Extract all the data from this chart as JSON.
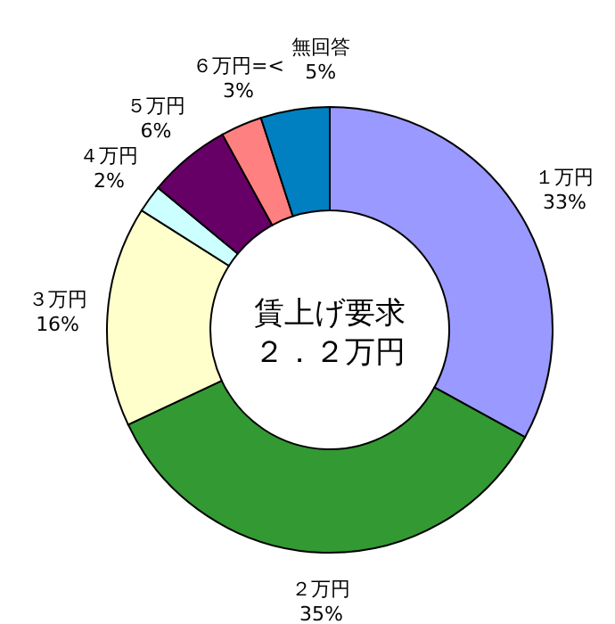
{
  "chart_data": {
    "type": "donut",
    "categories": [
      "１万円",
      "２万円",
      "３万円",
      "４万円",
      "５万円",
      "６万円=<",
      "無回答"
    ],
    "values": [
      33,
      35,
      16,
      2,
      6,
      3,
      5
    ],
    "value_labels": [
      "33%",
      "35%",
      "16%",
      "2%",
      "6%",
      "3%",
      "5%"
    ],
    "colors": [
      "#9999ff",
      "#339933",
      "#ffffcc",
      "#ccffff",
      "#660066",
      "#ff8080",
      "#0080c0"
    ],
    "annotations": [
      "賃上げ要求",
      "２．２万円"
    ],
    "legend": false
  }
}
